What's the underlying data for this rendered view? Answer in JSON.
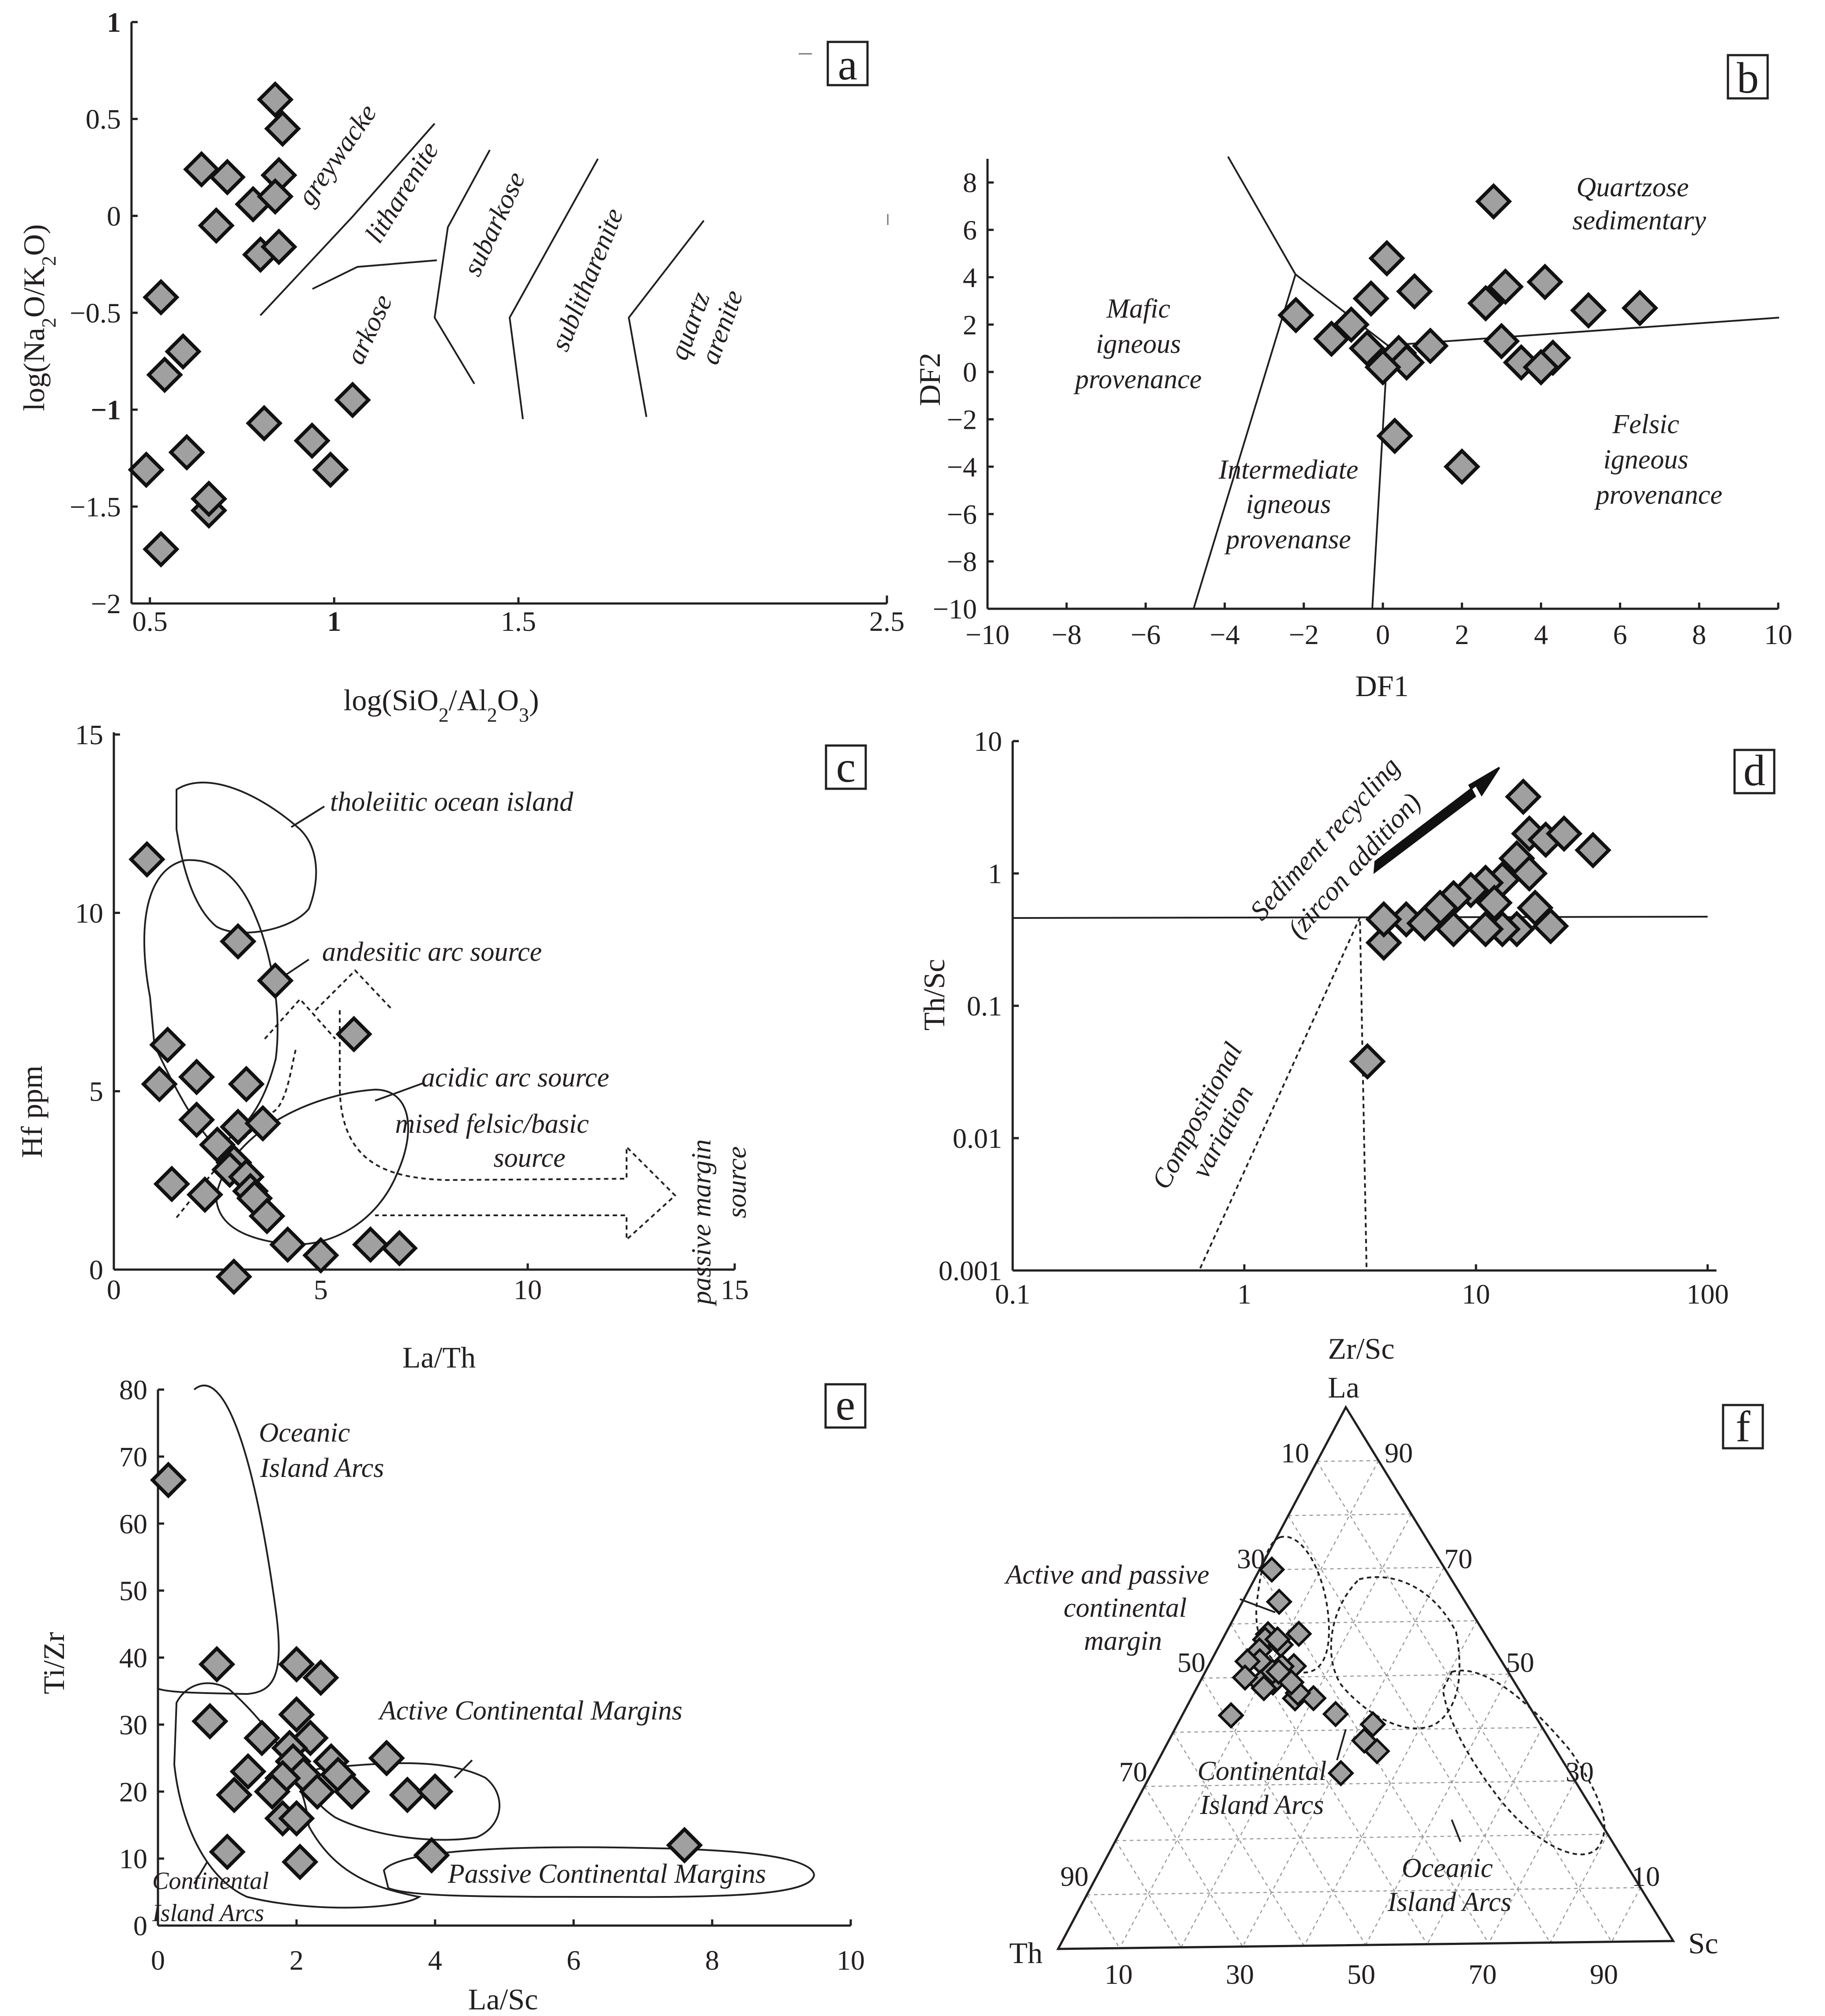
{
  "colors": {
    "marker_fill": "#a0a0a0",
    "marker_edge": "#111111",
    "line": "#231f20"
  },
  "chart_data": [
    {
      "panel": "a",
      "type": "scatter",
      "xlabel": "log(SiO2/Al2O3)",
      "ylabel": "log(Na2O/K2O)",
      "xlim": [
        0.45,
        2.5
      ],
      "ylim": [
        -2,
        1
      ],
      "xticks": [
        "0.5",
        "1",
        "1.5",
        "2.5"
      ],
      "xtick_values": [
        0.5,
        1,
        1.5,
        2.5
      ],
      "yticks": [
        "1",
        "0.5",
        "0",
        "−0.5",
        "−1",
        "−1.5",
        "−2"
      ],
      "ytick_values": [
        1,
        0.5,
        0,
        -0.5,
        -1,
        -1.5,
        -2
      ],
      "fields": [
        "greywacke",
        "litharenite",
        "subarkose",
        "arkose",
        "sublitharenite",
        "quartz",
        "arenite"
      ],
      "x": [
        0.84,
        0.86,
        0.64,
        0.71,
        0.85,
        0.78,
        0.84,
        0.68,
        0.8,
        0.85,
        0.53,
        0.54,
        0.59,
        0.6,
        0.81,
        0.94,
        0.99,
        1.05,
        0.49,
        0.66,
        0.66,
        0.53
      ],
      "y": [
        0.6,
        0.45,
        0.24,
        0.2,
        0.21,
        0.06,
        0.1,
        -0.05,
        -0.2,
        -0.16,
        -0.42,
        -0.82,
        -0.7,
        -1.22,
        -1.07,
        -1.16,
        -1.31,
        -0.95,
        -1.31,
        -1.52,
        -1.46,
        -1.72
      ]
    },
    {
      "panel": "b",
      "type": "scatter",
      "xlabel": "DF1",
      "ylabel": "DF2",
      "xlim": [
        -10,
        10
      ],
      "ylim": [
        -10,
        9
      ],
      "xticks": [
        "−10",
        "−8",
        "−6",
        "−4",
        "−2",
        "0",
        "2",
        "4",
        "6",
        "8",
        "10"
      ],
      "xtick_values": [
        -10,
        -8,
        -6,
        -4,
        -2,
        0,
        2,
        4,
        6,
        8,
        10
      ],
      "yticks": [
        "8",
        "6",
        "4",
        "2",
        "0",
        "−2",
        "−4",
        "−6",
        "−8",
        "−10"
      ],
      "ytick_values": [
        8,
        6,
        4,
        2,
        0,
        -2,
        -4,
        -6,
        -8,
        -10
      ],
      "fields": [
        "Mafic",
        "igneous",
        "provenance",
        "Intermediate",
        "igneous",
        "provenanse",
        "Felsic",
        "igneous",
        "provenance",
        "Quartzose",
        "sedimentary"
      ],
      "x": [
        2.8,
        0.1,
        3.1,
        4.1,
        0.8,
        2.6,
        5.2,
        6.5,
        -0.3,
        -2.2,
        -1.3,
        -0.8,
        -0.4,
        0.4,
        1.2,
        0.6,
        0.0,
        3.0,
        3.5,
        4.3,
        4.0,
        0.3,
        2.0
      ],
      "y": [
        7.2,
        4.8,
        3.6,
        3.8,
        3.4,
        2.9,
        2.6,
        2.7,
        3.1,
        2.4,
        1.4,
        2.0,
        1.0,
        0.8,
        1.1,
        0.4,
        0.2,
        1.3,
        0.4,
        0.6,
        0.2,
        -2.7,
        -4.0
      ]
    },
    {
      "panel": "c",
      "type": "scatter",
      "xlabel": "La/Th",
      "ylabel": "Hf ppm",
      "xlim": [
        0,
        15
      ],
      "ylim": [
        0,
        15
      ],
      "xticks": [
        "0",
        "5",
        "10",
        "15"
      ],
      "xtick_values": [
        0,
        5,
        10,
        15
      ],
      "yticks": [
        "15",
        "10",
        "5",
        "0"
      ],
      "ytick_values": [
        15,
        10,
        5,
        0
      ],
      "fields": [
        "tholeiitic ocean island",
        "andesitic arc source",
        "acidic arc source",
        "mised felsic/basic",
        "source",
        "passive margin",
        "source"
      ],
      "x": [
        0.8,
        3.0,
        3.9,
        1.3,
        5.8,
        1.1,
        2.0,
        3.2,
        2.0,
        3.0,
        3.6,
        2.5,
        2.9,
        2.8,
        3.2,
        1.4,
        2.2,
        3.3,
        3.4,
        3.7,
        4.2,
        5.0,
        6.2,
        6.9,
        2.9
      ],
      "y": [
        11.5,
        9.2,
        8.1,
        6.3,
        6.6,
        5.2,
        5.4,
        5.2,
        4.2,
        4.0,
        4.1,
        3.5,
        3.0,
        2.8,
        2.6,
        2.4,
        2.1,
        2.2,
        2.0,
        1.5,
        0.7,
        0.4,
        0.7,
        0.6,
        -0.2
      ]
    },
    {
      "panel": "d",
      "type": "scatter",
      "xscale": "log",
      "yscale": "log",
      "xlabel": "Zr/Sc",
      "ylabel": "Th/Sc",
      "xlim": [
        0.1,
        100
      ],
      "ylim": [
        0.001,
        10
      ],
      "xticks": [
        "0.1",
        "1",
        "10",
        "100"
      ],
      "xtick_values": [
        0.1,
        1,
        10,
        100
      ],
      "yticks": [
        "10",
        "1",
        "0.1",
        "0.01",
        "0.001"
      ],
      "ytick_values": [
        10,
        1,
        0.1,
        0.01,
        0.001
      ],
      "annotations": [
        "Sediment recycling",
        "(zircon addition)",
        "Compositional",
        "variation"
      ],
      "x": [
        16,
        17,
        20,
        24,
        32,
        15,
        13,
        11,
        17,
        9.5,
        12,
        8,
        7,
        5,
        6,
        4,
        18,
        8,
        15,
        13,
        11,
        21,
        4,
        3.4
      ],
      "y": [
        3.8,
        2.0,
        1.8,
        2.0,
        1.5,
        1.3,
        0.9,
        0.85,
        1.0,
        0.75,
        0.6,
        0.65,
        0.55,
        0.45,
        0.42,
        0.3,
        0.55,
        0.38,
        0.38,
        0.38,
        0.38,
        0.4,
        0.45,
        0.038
      ]
    },
    {
      "panel": "e",
      "type": "scatter",
      "xlabel": "La/Sc",
      "ylabel": "Ti/Zr",
      "xlim": [
        0,
        10
      ],
      "ylim": [
        0,
        80
      ],
      "xticks": [
        "0",
        "2",
        "4",
        "6",
        "8",
        "10"
      ],
      "xtick_values": [
        0,
        2,
        4,
        6,
        8,
        10
      ],
      "yticks": [
        "80",
        "70",
        "60",
        "50",
        "40",
        "30",
        "20",
        "10",
        "0"
      ],
      "ytick_values": [
        80,
        70,
        60,
        50,
        40,
        30,
        20,
        10,
        0
      ],
      "fields": [
        "Oceanic",
        "Island Arcs",
        "Active Continental Margins",
        "Passive Continental Margins",
        "Continental",
        "Island Arcs"
      ],
      "x": [
        0.15,
        0.85,
        0.75,
        2.0,
        2.35,
        2.0,
        1.5,
        2.2,
        1.9,
        1.95,
        1.3,
        2.5,
        2.1,
        1.8,
        1.1,
        2.3,
        1.65,
        1.8,
        2.0,
        2.6,
        2.8,
        3.3,
        3.6,
        4.0,
        3.95,
        2.05,
        1.0,
        7.6
      ],
      "y": [
        66.5,
        39,
        30.5,
        39,
        37,
        31.5,
        28,
        28,
        26.5,
        24.5,
        23,
        24.5,
        22.5,
        22,
        19.5,
        20,
        20,
        16,
        16,
        22.5,
        20,
        25,
        19.5,
        20,
        10.5,
        9.5,
        11,
        12
      ]
    },
    {
      "panel": "f",
      "type": "ternary",
      "vertices": [
        "La",
        "Th",
        "Sc"
      ],
      "left_ticks": [
        "10",
        "30",
        "50",
        "70",
        "90"
      ],
      "right_ticks": [
        "90",
        "70",
        "50",
        "30",
        "10"
      ],
      "bottom_ticks": [
        "10",
        "30",
        "50",
        "70",
        "90"
      ],
      "fields": [
        "Active and passive",
        "continental",
        "margin",
        "Continental",
        "Island Arcs",
        "Oceanic",
        "Island Arcs"
      ],
      "La": [
        64,
        70,
        58,
        52,
        58,
        57,
        55,
        52,
        56,
        57,
        53,
        50,
        49,
        51,
        49,
        53,
        48,
        50,
        48,
        46,
        46,
        47,
        51,
        49,
        43,
        38,
        41,
        36,
        32,
        43,
        43
      ],
      "Th": [
        30,
        28,
        30,
        34,
        35,
        36,
        38,
        36,
        34,
        34,
        39,
        38,
        39,
        38,
        41,
        41,
        41,
        43,
        41,
        37,
        34,
        36,
        37,
        36,
        32,
        30,
        27,
        29,
        37,
        49,
        49
      ],
      "Sc": [
        6,
        2,
        12,
        14,
        7,
        7,
        7,
        12,
        10,
        9,
        8,
        12,
        12,
        11,
        10,
        6,
        11,
        7,
        11,
        17,
        20,
        17,
        12,
        15,
        25,
        32,
        32,
        35,
        31,
        8,
        8
      ]
    }
  ]
}
